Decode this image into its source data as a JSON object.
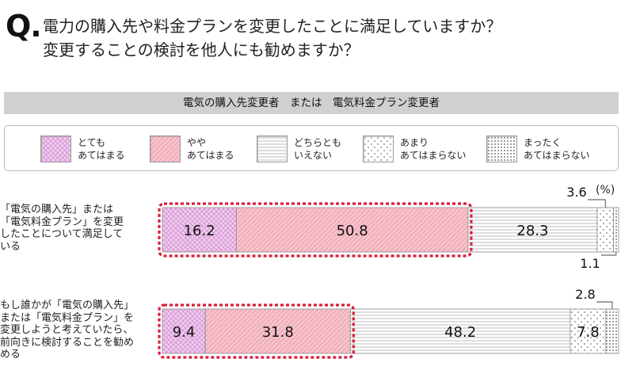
{
  "question": {
    "mark": "Q.",
    "line1": "電力の購入先や料金プランを変更したことに満足していますか？",
    "line2": "変更することの検討を他人にも勧めますか？"
  },
  "banner": {
    "text": "電気の購入先変更者　または　電気料金プラン変更者"
  },
  "chart_data": {
    "type": "bar",
    "orientation": "horizontal",
    "stacked": true,
    "unit": "(%)",
    "xlim": [
      0,
      100
    ],
    "categories": [
      "「電気の購入先」または\n「電気料金プラン」を変更\nしたことについて満足して\nいる",
      "もし誰かが「電気の購入先」\nまたは「電気料金プラン」を\n変更しようと考えていたら、\n前向きに検討することを勧め\nめる"
    ],
    "series": [
      {
        "name": "とても\nあてはまる",
        "values": [
          16.2,
          9.4
        ],
        "color": "#f1c9f0",
        "pattern": "crosshatch"
      },
      {
        "name": "やや\nあてはまる",
        "values": [
          50.8,
          31.8
        ],
        "color": "#f7c2cc",
        "pattern": "diagonal"
      },
      {
        "name": "どちらとも\nいえない",
        "values": [
          28.3,
          48.2
        ],
        "color": "#ffffff",
        "pattern": "horizontal"
      },
      {
        "name": "あまり\nあてはまらない",
        "values": [
          3.6,
          7.8
        ],
        "color": "#ffffff",
        "pattern": "sparse-dots"
      },
      {
        "name": "まったく\nあてはまらない",
        "values": [
          1.1,
          2.8
        ],
        "color": "#ffffff",
        "pattern": "dense-dots"
      }
    ],
    "highlight": "top-two-boxes",
    "highlight_color": "#d81f3d"
  }
}
